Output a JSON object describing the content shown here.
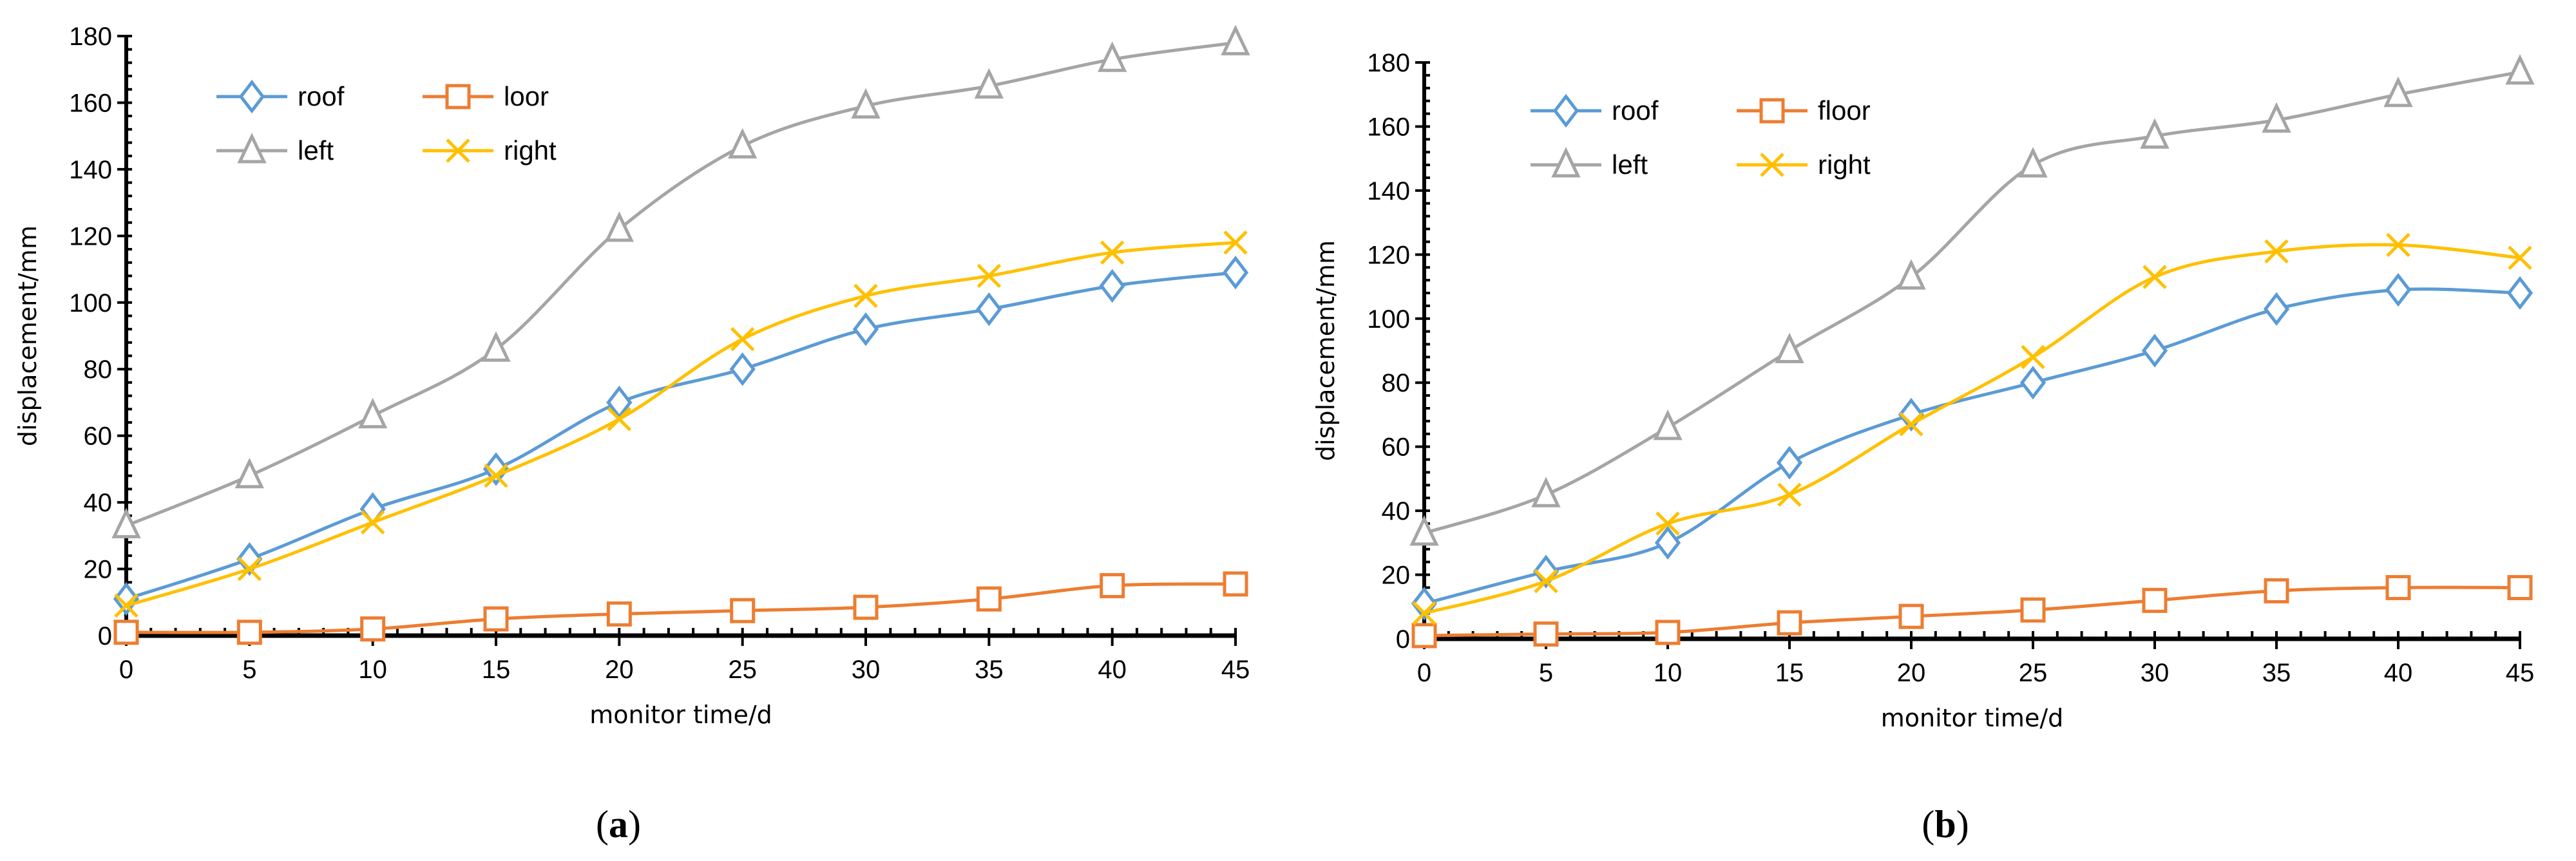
{
  "chart_data": [
    {
      "type": "line",
      "panel_label": "(a)",
      "bold_letter": "a",
      "xlabel": "monitor time/d",
      "ylabel": "displacement/mm",
      "xlim": [
        0,
        45
      ],
      "ylim": [
        0,
        180
      ],
      "xticks": [
        0,
        5,
        10,
        15,
        20,
        25,
        30,
        35,
        40,
        45
      ],
      "yticks": [
        0,
        20,
        40,
        60,
        80,
        100,
        120,
        140,
        160,
        180
      ],
      "x": [
        0,
        5,
        10,
        15,
        20,
        25,
        30,
        35,
        40,
        45
      ],
      "legend_position": "top-left",
      "series": [
        {
          "name": "roof",
          "marker": "diamond",
          "color": "#5B9BD5",
          "values": [
            11,
            23,
            38,
            50,
            70,
            80,
            92,
            98,
            105,
            109
          ]
        },
        {
          "name": "loor",
          "marker": "square",
          "color": "#ED7D31",
          "values": [
            1,
            1,
            2,
            5,
            6.5,
            7.5,
            8.5,
            11,
            15,
            15.5
          ]
        },
        {
          "name": "left",
          "marker": "triangle",
          "color": "#A5A5A5",
          "values": [
            33,
            48,
            66,
            86,
            122,
            147,
            159,
            165,
            173,
            178
          ]
        },
        {
          "name": "right",
          "marker": "x",
          "color": "#FFC000",
          "values": [
            9,
            20,
            34,
            48,
            65,
            89,
            102,
            108,
            115,
            118
          ]
        }
      ]
    },
    {
      "type": "line",
      "panel_label": "(b)",
      "bold_letter": "b",
      "xlabel": "monitor time/d",
      "ylabel": "displacement/mm",
      "xlim": [
        0,
        45
      ],
      "ylim": [
        0,
        180
      ],
      "xticks": [
        0,
        5,
        10,
        15,
        20,
        25,
        30,
        35,
        40,
        45
      ],
      "yticks": [
        0,
        20,
        40,
        60,
        80,
        100,
        120,
        140,
        160,
        180
      ],
      "x": [
        0,
        5,
        10,
        15,
        20,
        25,
        30,
        35,
        40,
        45
      ],
      "legend_position": "top-left",
      "series": [
        {
          "name": "roof",
          "marker": "diamond",
          "color": "#5B9BD5",
          "values": [
            11,
            21,
            30,
            55,
            70,
            80,
            90,
            103,
            109,
            108
          ]
        },
        {
          "name": "floor",
          "marker": "square",
          "color": "#ED7D31",
          "values": [
            1,
            1.5,
            2,
            5,
            7,
            9,
            12,
            15,
            16,
            16
          ]
        },
        {
          "name": "left",
          "marker": "triangle",
          "color": "#A5A5A5",
          "values": [
            33,
            45,
            66,
            90,
            113,
            148,
            157,
            162,
            170,
            177
          ]
        },
        {
          "name": "right",
          "marker": "x",
          "color": "#FFC000",
          "values": [
            8,
            18,
            36,
            45,
            67,
            88,
            113,
            121,
            123,
            119
          ]
        }
      ]
    }
  ]
}
